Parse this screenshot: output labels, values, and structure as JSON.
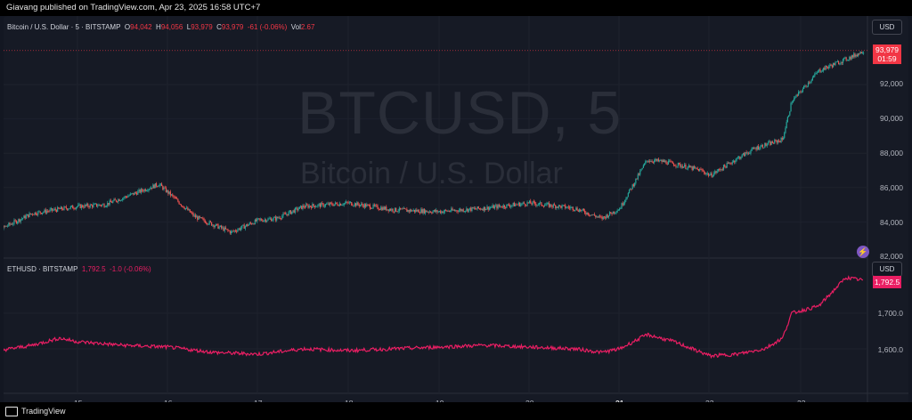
{
  "publisher": "Giavang published on TradingView.com, Apr 23, 2025 16:58 UTC+7",
  "main_pane": {
    "symbol_desc": "Bitcoin / U.S. Dollar · 5 · BITSTAMP",
    "ohlc": {
      "o_label": "O",
      "o": "94,042",
      "h_label": "H",
      "h": "94,056",
      "l_label": "L",
      "l": "93,979",
      "c_label": "C",
      "c": "93,979",
      "change": "-61 (-0.06%)",
      "vol_label": "Vol",
      "vol": "2.67"
    },
    "watermark_symbol": "BTCUSD, 5",
    "watermark_name": "Bitcoin / U.S. Dollar",
    "currency": "USD",
    "last_price": "93,979",
    "countdown": "01:59",
    "y_ticks": [
      "92,000",
      "90,000",
      "88,000",
      "86,000",
      "84,000",
      "82,000"
    ]
  },
  "sub_pane": {
    "symbol_desc": "ETHUSD · BITSTAMP",
    "value": "1,792.5",
    "change": "-1.0 (-0.06%)",
    "currency": "USD",
    "last_price": "1,792.5",
    "y_ticks": [
      "1,700.0",
      "1,600.0"
    ]
  },
  "time_axis": [
    "15",
    "16",
    "17",
    "18",
    "19",
    "20",
    "21",
    "22",
    "23"
  ],
  "footer": {
    "brand": "TradingView"
  },
  "colors": {
    "up": "#26a69a",
    "down": "#ef5350",
    "eth_line": "#e91e63",
    "bg": "#161a25"
  },
  "chart_data": [
    {
      "type": "line",
      "title": "Bitcoin / U.S. Dollar · 5 · BITSTAMP",
      "x": [
        "14",
        "14.5",
        "15",
        "15.3",
        "15.6",
        "15.9",
        "16.3",
        "16.7",
        "17",
        "17.2",
        "17.5",
        "18",
        "18.5",
        "19",
        "19.5",
        "20",
        "20.5",
        "20.8",
        "21",
        "21.3",
        "21.5",
        "21.9",
        "22",
        "22.3",
        "22.5",
        "22.8",
        "22.9",
        "23.2",
        "23.6",
        "23.7"
      ],
      "series": [
        {
          "values": [
            83200,
            84500,
            84900,
            85000,
            85600,
            86200,
            84300,
            83400,
            84100,
            84200,
            84900,
            85100,
            84700,
            84600,
            84800,
            85100,
            84800,
            84200,
            84800,
            87600,
            87500,
            87000,
            86700,
            87700,
            88300,
            88800,
            91000,
            92800,
            93700,
            93979
          ]
        }
      ],
      "ylim": [
        82000,
        93979
      ]
    },
    {
      "type": "line",
      "title": "ETHUSD · BITSTAMP",
      "x": [
        "14",
        "14.5",
        "14.8",
        "15",
        "15.5",
        "16",
        "16.5",
        "17",
        "17.5",
        "18",
        "18.5",
        "19",
        "19.5",
        "20",
        "20.5",
        "20.8",
        "21",
        "21.3",
        "21.6",
        "22",
        "22.3",
        "22.6",
        "22.8",
        "22.9",
        "23.2",
        "23.5",
        "23.7"
      ],
      "series": [
        {
          "values": [
            1590,
            1610,
            1630,
            1620,
            1610,
            1605,
            1590,
            1585,
            1600,
            1595,
            1600,
            1605,
            1610,
            1605,
            1600,
            1590,
            1600,
            1640,
            1620,
            1580,
            1585,
            1600,
            1630,
            1700,
            1720,
            1800,
            1792.5
          ]
        }
      ],
      "ylim": [
        1550,
        1820
      ]
    }
  ]
}
